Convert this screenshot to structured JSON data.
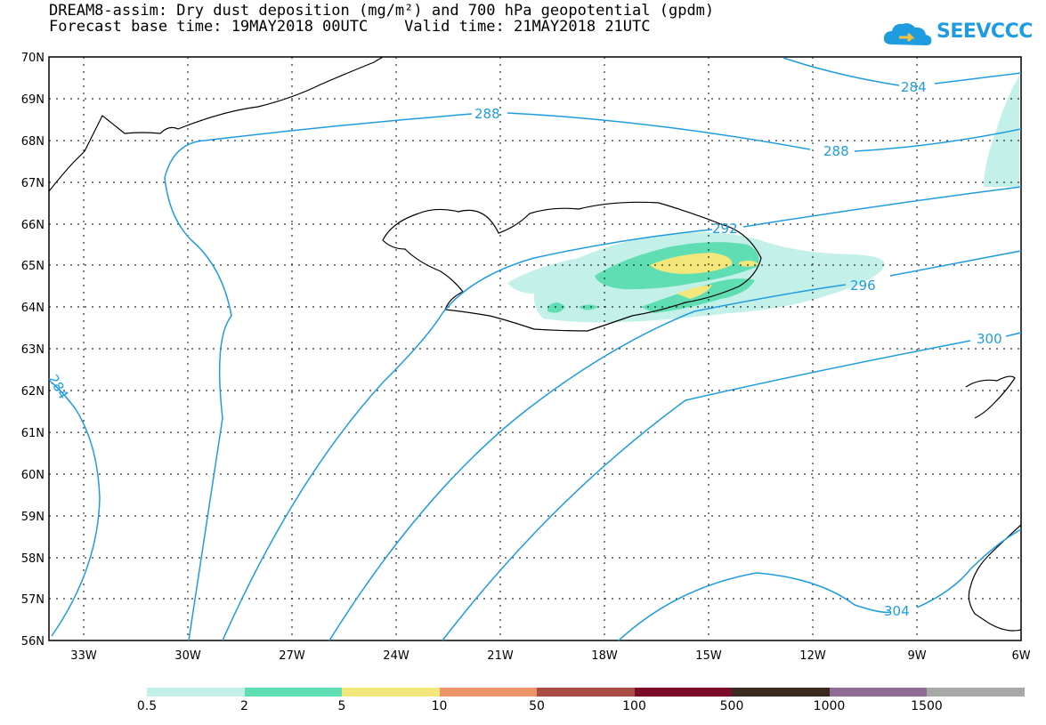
{
  "header": {
    "title_line1": "DREAM8-assim: Dry dust deposition (mg/m²) and 700 hPa geopotential (gpdm)",
    "title_line2": "Forecast base time: 19MAY2018 00UTC    Valid time: 21MAY2018 21UTC"
  },
  "logo": {
    "text": "SEEVCCC",
    "icon": "cloud-icon",
    "color": "#1f9ce0"
  },
  "map": {
    "lat_labels": [
      "70N",
      "69N",
      "68N",
      "67N",
      "66N",
      "65N",
      "64N",
      "63N",
      "62N",
      "61N",
      "60N",
      "59N",
      "58N",
      "57N",
      "56N"
    ],
    "lon_labels": [
      "33W",
      "30W",
      "27W",
      "24W",
      "21W",
      "18W",
      "15W",
      "12W",
      "9W",
      "6W"
    ],
    "contour_color": "#1f9ce0",
    "contour_labels": [
      "284",
      "288",
      "288",
      "292",
      "296",
      "300",
      "304",
      "284"
    ]
  },
  "legend": {
    "colors": [
      "#c3f0e8",
      "#5fdeb4",
      "#f3e67a",
      "#ec9368",
      "#a94c44",
      "#7a0c2a",
      "#3a2a1e",
      "#8f6b96",
      "#a8a8a8"
    ],
    "labels": [
      "0.5",
      "2",
      "5",
      "10",
      "50",
      "100",
      "500",
      "1000",
      "1500"
    ]
  }
}
